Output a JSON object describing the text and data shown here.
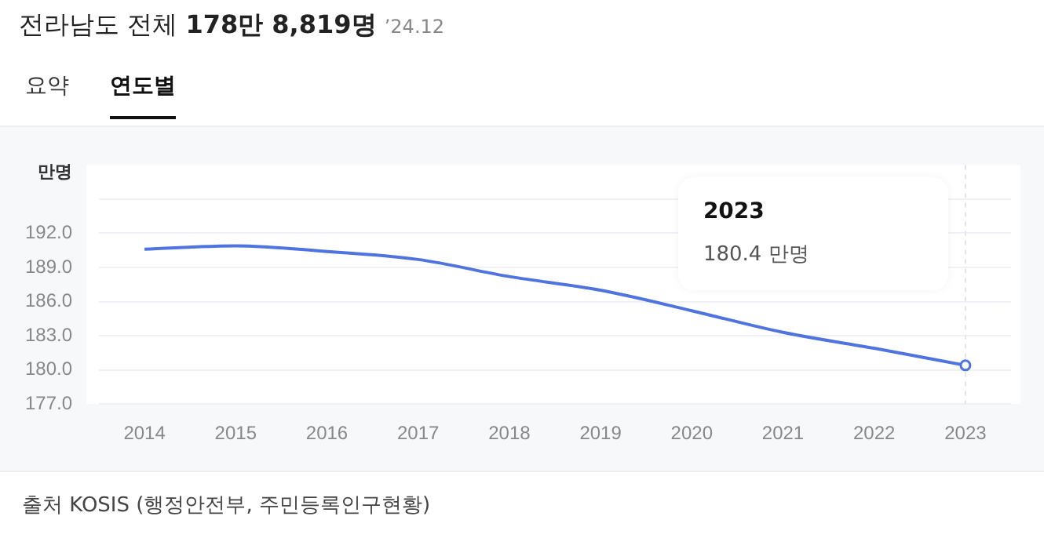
{
  "chart_data": {
    "type": "line",
    "title": "전라남도 전체",
    "subtitle": "178만 8,819명",
    "ylabel": "만명",
    "annotations": [
      "’24.12",
      "요약",
      "연도별",
      "2023\n180.4 만명",
      "출처 KOSIS (행정안전부, 주민등록인구현황)"
    ],
    "categories": [
      "2014",
      "2015",
      "2016",
      "2017",
      "2018",
      "2019",
      "2020",
      "2021",
      "2022",
      "2023"
    ],
    "series": [
      {
        "color": "#4f74e0",
        "values": [
          190.6,
          190.9,
          190.4,
          189.7,
          188.2,
          187.0,
          185.2,
          183.3,
          181.9,
          180.4
        ]
      }
    ],
    "ylim": [
      177,
      198
    ],
    "yticks": [
      {
        "value": 177,
        "label": "177.0"
      },
      {
        "value": 180,
        "label": "180.0"
      },
      {
        "value": 183,
        "label": "183.0"
      },
      {
        "value": 186,
        "label": "186.0"
      },
      {
        "value": 189,
        "label": "189.0"
      },
      {
        "value": 192,
        "label": "192.0"
      },
      {
        "value": 195,
        "label": null
      }
    ],
    "ref_lines": [
      {
        "axis": "x",
        "value": "2023",
        "color": "#e2e4e8",
        "line_style": "dashed"
      }
    ],
    "grid": "y",
    "legend": false,
    "marker": "none",
    "line_style": "solid"
  }
}
